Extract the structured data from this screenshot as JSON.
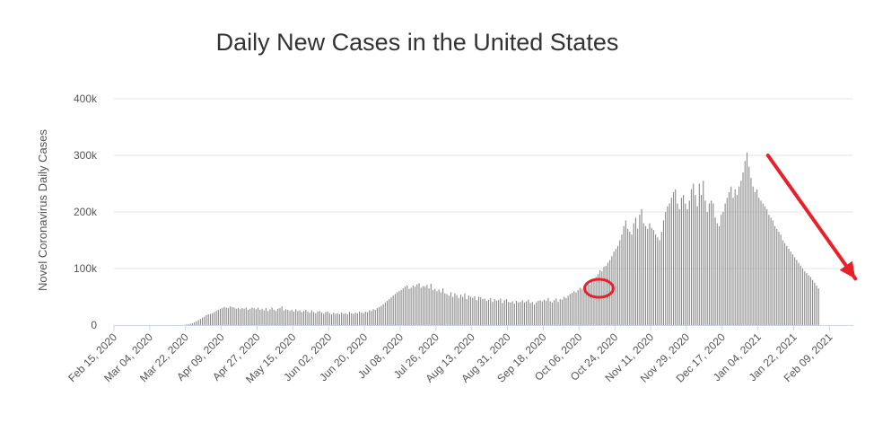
{
  "chart_data": {
    "type": "bar",
    "title": "Daily New Cases in the United States",
    "ylabel": "Novel Coronavirus Daily Cases",
    "xlabel": "",
    "ylim": [
      0,
      400000
    ],
    "y_ticks": [
      {
        "value": 0,
        "label": "0"
      },
      {
        "value": 100000,
        "label": "100k"
      },
      {
        "value": 200000,
        "label": "200k"
      },
      {
        "value": 300000,
        "label": "300k"
      },
      {
        "value": 400000,
        "label": "400k"
      }
    ],
    "x_tick_labels": [
      "Feb 15, 2020",
      "Mar 04, 2020",
      "Mar 22, 2020",
      "Apr 09, 2020",
      "Apr 27, 2020",
      "May 15, 2020",
      "Jun 02, 2020",
      "Jun 20, 2020",
      "Jul 08, 2020",
      "Jul 26, 2020",
      "Aug 13, 2020",
      "Aug 31, 2020",
      "Sep 18, 2020",
      "Oct 06, 2020",
      "Oct 24, 2020",
      "Nov 11, 2020",
      "Nov 29, 2020",
      "Dec 17, 2020",
      "Jan 04, 2021",
      "Jan 22, 2021",
      "Feb 09, 2021"
    ],
    "x_start": "2020-02-15",
    "x_end": "2021-02-21",
    "grid": true,
    "bar_color": "#888888",
    "annotation_color": "#e8202a",
    "annotations": [
      {
        "type": "circle",
        "date": "2020-10-16",
        "value": 65000
      },
      {
        "type": "arrow",
        "from_date": "2021-01-09",
        "from_value": 300000,
        "to_date": "2021-02-22",
        "to_value": 82000
      }
    ],
    "series": [
      {
        "values": [
          0,
          0,
          0,
          0,
          0,
          0,
          0,
          0,
          0,
          0,
          0,
          0,
          0,
          0,
          0,
          0,
          0,
          0,
          0,
          0,
          0,
          0,
          0,
          0,
          0,
          0,
          0,
          0,
          0,
          0,
          0,
          0,
          0,
          0,
          0,
          0,
          1000,
          1500,
          2500,
          3500,
          5000,
          7000,
          9000,
          11000,
          13000,
          15000,
          17500,
          19000,
          20000,
          21000,
          23000,
          25000,
          27000,
          29000,
          30000,
          32000,
          31000,
          30000,
          33000,
          32000,
          31000,
          29000,
          30000,
          28000,
          30000,
          29000,
          31000,
          27000,
          29000,
          31000,
          30000,
          28000,
          31000,
          27000,
          29000,
          26000,
          30000,
          25000,
          28000,
          31000,
          27000,
          25000,
          29000,
          30000,
          33000,
          26000,
          28000,
          27000,
          25000,
          27000,
          24000,
          28000,
          25000,
          26000,
          23000,
          25000,
          27000,
          24000,
          22000,
          26000,
          23000,
          21000,
          24000,
          25000,
          22000,
          20000,
          23000,
          24000,
          21000,
          19000,
          22000,
          20000,
          21000,
          19000,
          22000,
          20000,
          21000,
          19000,
          23000,
          21000,
          20000,
          22000,
          21000,
          24000,
          22000,
          21000,
          24000,
          23000,
          26000,
          25000,
          28000,
          27000,
          30000,
          32000,
          34000,
          37000,
          40000,
          43000,
          46000,
          49000,
          52000,
          55000,
          58000,
          60000,
          62000,
          65000,
          68000,
          70000,
          64000,
          66000,
          70000,
          68000,
          72000,
          74000,
          66000,
          69000,
          68000,
          71000,
          65000,
          73000,
          62000,
          64000,
          60000,
          63000,
          58000,
          65000,
          56000,
          55000,
          52000,
          58000,
          50000,
          56000,
          53000,
          48000,
          54000,
          50000,
          56000,
          46000,
          52000,
          50000,
          48000,
          51000,
          44000,
          50000,
          49000,
          46000,
          47000,
          43000,
          45000,
          48000,
          41000,
          46000,
          43000,
          44000,
          47000,
          39000,
          44000,
          46000,
          41000,
          40000,
          42000,
          38000,
          43000,
          40000,
          41000,
          44000,
          40000,
          42000,
          45000,
          39000,
          41000,
          36000,
          40000,
          43000,
          44000,
          42000,
          45000,
          43000,
          48000,
          42000,
          40000,
          44000,
          47000,
          41000,
          46000,
          45000,
          50000,
          48000,
          52000,
          55000,
          57000,
          60000,
          58000,
          62000,
          66000,
          64000,
          70000,
          68000,
          75000,
          72000,
          80000,
          78000,
          85000,
          90000,
          97000,
          95000,
          103000,
          105000,
          110000,
          115000,
          122000,
          130000,
          135000,
          140000,
          150000,
          160000,
          175000,
          185000,
          170000,
          165000,
          160000,
          180000,
          190000,
          170000,
          195000,
          205000,
          180000,
          175000,
          170000,
          180000,
          172000,
          168000,
          160000,
          155000,
          150000,
          165000,
          185000,
          200000,
          210000,
          215000,
          225000,
          235000,
          240000,
          215000,
          205000,
          225000,
          230000,
          215000,
          205000,
          220000,
          240000,
          250000,
          230000,
          210000,
          250000,
          230000,
          255000,
          220000,
          200000,
          215000,
          220000,
          215000,
          190000,
          180000,
          175000,
          195000,
          200000,
          215000,
          225000,
          235000,
          245000,
          225000,
          240000,
          230000,
          245000,
          255000,
          270000,
          290000,
          305000,
          280000,
          260000,
          245000,
          235000,
          240000,
          225000,
          220000,
          215000,
          210000,
          205000,
          195000,
          190000,
          185000,
          175000,
          170000,
          165000,
          160000,
          150000,
          145000,
          140000,
          135000,
          130000,
          125000,
          120000,
          115000,
          110000,
          105000,
          100000,
          95000,
          92000,
          88000,
          85000,
          80000,
          75000,
          70000,
          65000
        ]
      }
    ]
  }
}
